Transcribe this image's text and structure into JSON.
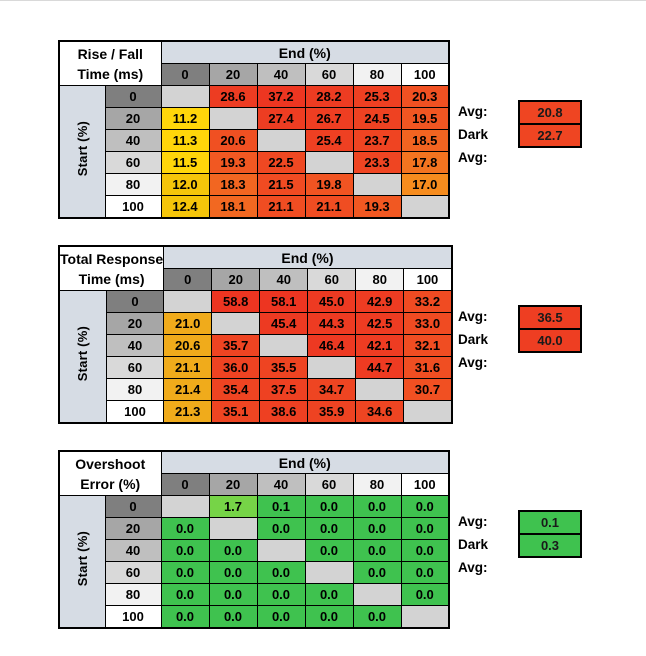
{
  "colors": {
    "page_bg": "#FFFFFF",
    "edge_line": "#D9D9D9",
    "band_bg": "#D6DCE4",
    "blank_cell": "#D3D3D3",
    "grid_line": "#000000",
    "header_gradient": [
      "#7F7F7F",
      "#A6A6A6",
      "#BFBFBF",
      "#D9D9D9",
      "#F2F2F2",
      "#FFFFFF"
    ]
  },
  "tables": [
    {
      "id": "rise-fall",
      "title_line1": "Rise / Fall",
      "title_line2": "Time (ms)",
      "band_label": "End (%)",
      "row_group_label": "Start (%)",
      "col_headers": [
        "0",
        "20",
        "40",
        "60",
        "80",
        "100"
      ],
      "row_headers": [
        "0",
        "20",
        "40",
        "60",
        "80",
        "100"
      ],
      "cells": [
        [
          {
            "v": "",
            "bg": "#D3D3D3"
          },
          {
            "v": "28.6",
            "bg": "#ED3C22"
          },
          {
            "v": "37.2",
            "bg": "#ED3621"
          },
          {
            "v": "28.2",
            "bg": "#ED3C22"
          },
          {
            "v": "25.3",
            "bg": "#EE4022"
          },
          {
            "v": "20.3",
            "bg": "#F05122"
          }
        ],
        [
          {
            "v": "11.2",
            "bg": "#FFD60A"
          },
          {
            "v": "",
            "bg": "#D3D3D3"
          },
          {
            "v": "27.4",
            "bg": "#ED3D22"
          },
          {
            "v": "26.7",
            "bg": "#EE3E22"
          },
          {
            "v": "24.5",
            "bg": "#EE4222"
          },
          {
            "v": "19.5",
            "bg": "#F15622"
          }
        ],
        [
          {
            "v": "11.3",
            "bg": "#FFD60A"
          },
          {
            "v": "20.6",
            "bg": "#F05022"
          },
          {
            "v": "",
            "bg": "#D3D3D3"
          },
          {
            "v": "25.4",
            "bg": "#EE4022"
          },
          {
            "v": "23.7",
            "bg": "#EF4422"
          },
          {
            "v": "18.5",
            "bg": "#F26421"
          }
        ],
        [
          {
            "v": "11.5",
            "bg": "#FFD60A"
          },
          {
            "v": "19.3",
            "bg": "#F15822"
          },
          {
            "v": "22.5",
            "bg": "#EF4822"
          },
          {
            "v": "",
            "bg": "#D3D3D3"
          },
          {
            "v": "23.3",
            "bg": "#EF4522"
          },
          {
            "v": "17.8",
            "bg": "#F37420"
          }
        ],
        [
          {
            "v": "12.0",
            "bg": "#F5C50A"
          },
          {
            "v": "18.3",
            "bg": "#F26621"
          },
          {
            "v": "21.5",
            "bg": "#F04B22"
          },
          {
            "v": "19.8",
            "bg": "#F15422"
          },
          {
            "v": "",
            "bg": "#D3D3D3"
          },
          {
            "v": "17.0",
            "bg": "#F68C1E"
          }
        ],
        [
          {
            "v": "12.4",
            "bg": "#F5C50A"
          },
          {
            "v": "18.1",
            "bg": "#F26821"
          },
          {
            "v": "21.1",
            "bg": "#F04D22"
          },
          {
            "v": "21.1",
            "bg": "#F04D22"
          },
          {
            "v": "19.3",
            "bg": "#F15822"
          },
          {
            "v": "",
            "bg": "#D3D3D3"
          }
        ]
      ],
      "avg": {
        "label": "Avg:",
        "value": "20.8",
        "bg": "#EF4522"
      },
      "dark_avg": {
        "label": "Dark Avg:",
        "value": "22.7",
        "bg": "#EF4522"
      }
    },
    {
      "id": "total-response",
      "title_line1": "Total Response",
      "title_line2": "Time (ms)",
      "band_label": "End (%)",
      "row_group_label": "Start (%)",
      "col_headers": [
        "0",
        "20",
        "40",
        "60",
        "80",
        "100"
      ],
      "row_headers": [
        "0",
        "20",
        "40",
        "60",
        "80",
        "100"
      ],
      "cells": [
        [
          {
            "v": "",
            "bg": "#D3D3D3"
          },
          {
            "v": "58.8",
            "bg": "#ED3521"
          },
          {
            "v": "58.1",
            "bg": "#ED3521"
          },
          {
            "v": "45.0",
            "bg": "#ED3A22"
          },
          {
            "v": "42.9",
            "bg": "#EE3C22"
          },
          {
            "v": "33.2",
            "bg": "#F04B22"
          }
        ],
        [
          {
            "v": "21.0",
            "bg": "#F0AB1B"
          },
          {
            "v": "",
            "bg": "#D3D3D3"
          },
          {
            "v": "45.4",
            "bg": "#ED3A22"
          },
          {
            "v": "44.3",
            "bg": "#EE3B22"
          },
          {
            "v": "42.5",
            "bg": "#EE3C22"
          },
          {
            "v": "33.0",
            "bg": "#F04B22"
          }
        ],
        [
          {
            "v": "20.6",
            "bg": "#F0AB1B"
          },
          {
            "v": "35.7",
            "bg": "#EE4422"
          },
          {
            "v": "",
            "bg": "#D3D3D3"
          },
          {
            "v": "46.4",
            "bg": "#ED3922"
          },
          {
            "v": "42.1",
            "bg": "#EE3C22"
          },
          {
            "v": "32.1",
            "bg": "#F04D22"
          }
        ],
        [
          {
            "v": "21.1",
            "bg": "#F0AB1B"
          },
          {
            "v": "36.0",
            "bg": "#EE4322"
          },
          {
            "v": "35.5",
            "bg": "#EE4422"
          },
          {
            "v": "",
            "bg": "#D3D3D3"
          },
          {
            "v": "44.7",
            "bg": "#EE3B22"
          },
          {
            "v": "31.6",
            "bg": "#F04E22"
          }
        ],
        [
          {
            "v": "21.4",
            "bg": "#F0AB1B"
          },
          {
            "v": "35.4",
            "bg": "#EE4422"
          },
          {
            "v": "37.5",
            "bg": "#EE4122"
          },
          {
            "v": "34.7",
            "bg": "#EE4522"
          },
          {
            "v": "",
            "bg": "#D3D3D3"
          },
          {
            "v": "30.7",
            "bg": "#F15022"
          }
        ],
        [
          {
            "v": "21.3",
            "bg": "#F0AB1B"
          },
          {
            "v": "35.1",
            "bg": "#EE4522"
          },
          {
            "v": "38.6",
            "bg": "#EE4022"
          },
          {
            "v": "35.9",
            "bg": "#EE4322"
          },
          {
            "v": "34.6",
            "bg": "#EE4522"
          },
          {
            "v": "",
            "bg": "#D3D3D3"
          }
        ]
      ],
      "avg": {
        "label": "Avg:",
        "value": "36.5",
        "bg": "#EE3E22"
      },
      "dark_avg": {
        "label": "Dark Avg:",
        "value": "40.0",
        "bg": "#EE3E22"
      }
    },
    {
      "id": "overshoot",
      "title_line1": "Overshoot",
      "title_line2": "Error (%)",
      "band_label": "End (%)",
      "row_group_label": "Start (%)",
      "col_headers": [
        "0",
        "20",
        "40",
        "60",
        "80",
        "100"
      ],
      "row_headers": [
        "0",
        "20",
        "40",
        "60",
        "80",
        "100"
      ],
      "cells": [
        [
          {
            "v": "",
            "bg": "#D3D3D3"
          },
          {
            "v": "1.7",
            "bg": "#76D447"
          },
          {
            "v": "0.1",
            "bg": "#3FC24F"
          },
          {
            "v": "0.0",
            "bg": "#3FC24F"
          },
          {
            "v": "0.0",
            "bg": "#3FC24F"
          },
          {
            "v": "0.0",
            "bg": "#3FC24F"
          }
        ],
        [
          {
            "v": "0.0",
            "bg": "#3FC24F"
          },
          {
            "v": "",
            "bg": "#D3D3D3"
          },
          {
            "v": "0.0",
            "bg": "#3FC24F"
          },
          {
            "v": "0.0",
            "bg": "#3FC24F"
          },
          {
            "v": "0.0",
            "bg": "#3FC24F"
          },
          {
            "v": "0.0",
            "bg": "#3FC24F"
          }
        ],
        [
          {
            "v": "0.0",
            "bg": "#3FC24F"
          },
          {
            "v": "0.0",
            "bg": "#3FC24F"
          },
          {
            "v": "",
            "bg": "#D3D3D3"
          },
          {
            "v": "0.0",
            "bg": "#3FC24F"
          },
          {
            "v": "0.0",
            "bg": "#3FC24F"
          },
          {
            "v": "0.0",
            "bg": "#3FC24F"
          }
        ],
        [
          {
            "v": "0.0",
            "bg": "#3FC24F"
          },
          {
            "v": "0.0",
            "bg": "#3FC24F"
          },
          {
            "v": "0.0",
            "bg": "#3FC24F"
          },
          {
            "v": "",
            "bg": "#D3D3D3"
          },
          {
            "v": "0.0",
            "bg": "#3FC24F"
          },
          {
            "v": "0.0",
            "bg": "#3FC24F"
          }
        ],
        [
          {
            "v": "0.0",
            "bg": "#3FC24F"
          },
          {
            "v": "0.0",
            "bg": "#3FC24F"
          },
          {
            "v": "0.0",
            "bg": "#3FC24F"
          },
          {
            "v": "0.0",
            "bg": "#3FC24F"
          },
          {
            "v": "",
            "bg": "#D3D3D3"
          },
          {
            "v": "0.0",
            "bg": "#3FC24F"
          }
        ],
        [
          {
            "v": "0.0",
            "bg": "#3FC24F"
          },
          {
            "v": "0.0",
            "bg": "#3FC24F"
          },
          {
            "v": "0.0",
            "bg": "#3FC24F"
          },
          {
            "v": "0.0",
            "bg": "#3FC24F"
          },
          {
            "v": "0.0",
            "bg": "#3FC24F"
          },
          {
            "v": "",
            "bg": "#D3D3D3"
          }
        ]
      ],
      "avg": {
        "label": "Avg:",
        "value": "0.1",
        "bg": "#3FC24F"
      },
      "dark_avg": {
        "label": "Dark Avg:",
        "value": "0.3",
        "bg": "#3FC24F"
      }
    }
  ]
}
